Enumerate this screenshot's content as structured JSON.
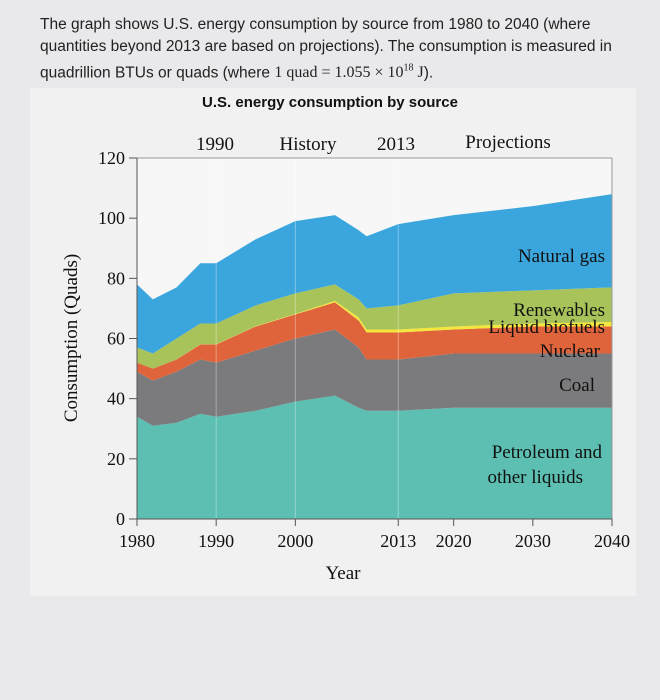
{
  "caption": {
    "text_before": "The graph shows U.S. energy consumption by source from 1980 to 2040 (where quantities beyond 2013 are based on projections). The consumption is measured in quadrillion BTUs or quads (where ",
    "math": "1 quad = 1.055 × 10",
    "exponent": "18",
    "unit": " J",
    "text_after": ")."
  },
  "chart_data": {
    "type": "area",
    "stacked": true,
    "title": "U.S. energy consumption by source",
    "xlabel": "Year",
    "ylabel": "Consumption (Quads)",
    "xlim": [
      1980,
      2040
    ],
    "ylim": [
      0,
      120
    ],
    "x_ticks": [
      1980,
      1990,
      2000,
      2013,
      2020,
      2030,
      2040
    ],
    "y_ticks": [
      0,
      20,
      40,
      60,
      80,
      100,
      120
    ],
    "grid": "vertical lines at 1990, 2000, 2013",
    "top_annotations": [
      "1990",
      "History",
      "2013",
      "Projections"
    ],
    "x": [
      1980,
      1982,
      1985,
      1988,
      1990,
      1995,
      2000,
      2005,
      2008,
      2009,
      2013,
      2020,
      2030,
      2040
    ],
    "series": [
      {
        "name": "Petroleum and other liquids",
        "color": "#5cbfb1",
        "values": [
          34,
          31,
          32,
          35,
          34,
          36,
          39,
          41,
          37,
          36,
          36,
          37,
          37,
          37
        ]
      },
      {
        "name": "Coal",
        "color": "#7b7b7d",
        "values": [
          15,
          15,
          17,
          18,
          18,
          20,
          21,
          22,
          20,
          17,
          17,
          18,
          18,
          18
        ]
      },
      {
        "name": "Nuclear",
        "color": "#e0643b",
        "values": [
          3,
          4,
          4,
          5,
          6,
          8,
          8,
          9,
          9,
          9,
          9,
          8,
          9,
          9
        ]
      },
      {
        "name": "Liquid biofuels",
        "color": "#f4e63c",
        "values": [
          0,
          0,
          0,
          0.1,
          0.1,
          0.1,
          0.2,
          0.5,
          1,
          1,
          1,
          1,
          1,
          1.5
        ]
      },
      {
        "name": "Renewables",
        "color": "#a8c35a",
        "values": [
          5,
          5,
          7,
          6.9,
          6.9,
          6.9,
          6.8,
          5.5,
          6,
          7,
          8,
          11,
          11,
          11.5
        ]
      },
      {
        "name": "Natural gas",
        "color": "#3ba6dd",
        "values": [
          21,
          18,
          17,
          20,
          20,
          22,
          24,
          23,
          23,
          24,
          27,
          26,
          28,
          31
        ]
      }
    ],
    "series_labels": {
      "natural_gas": "Natural gas",
      "renewables": "Renewables",
      "biofuels": "Liquid biofuels",
      "nuclear": "Nuclear",
      "coal": "Coal",
      "petroleum_1": "Petroleum and",
      "petroleum_2": "other liquids"
    }
  }
}
